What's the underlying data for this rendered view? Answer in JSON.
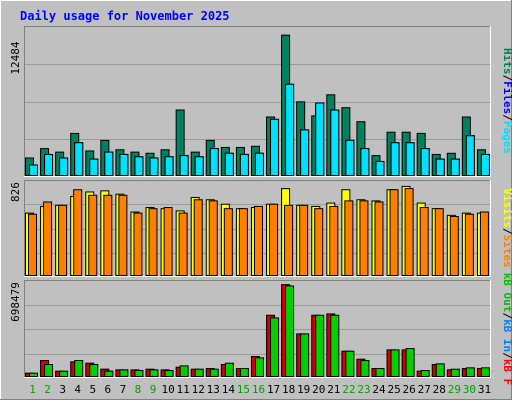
{
  "title": "Daily usage for November 2025",
  "colors": {
    "background": "#c0c0c0",
    "title": "#0000ff",
    "hits": "#00805c",
    "files": "#00c0ff",
    "pages": "#00e0ff",
    "sites": "#ff8000",
    "visits": "#ffff00",
    "kb_in": "#0080ff",
    "kb_out": "#00c000",
    "kb_f": "#ff0000",
    "kb_bar_red": "#d00000",
    "kb_bar_green": "#00d000",
    "weekend_day": "#00a000",
    "weekday_day": "#000000"
  },
  "chart_data": [
    {
      "type": "bar",
      "panel": "hits-files-pages",
      "ymax_label": "12484",
      "ylim": [
        0,
        12484
      ],
      "legend": [
        {
          "label": "Pages",
          "color": "#00e0ff"
        },
        {
          "label": "Files",
          "color": "#0000ff"
        },
        {
          "label": "Hits",
          "color": "#00805c"
        }
      ],
      "series": [
        {
          "name": "Hits",
          "values": [
            1500,
            2300,
            2000,
            3600,
            2100,
            3000,
            2200,
            2000,
            1900,
            2200,
            5600,
            2000,
            3000,
            2400,
            2400,
            2500,
            5000,
            12000,
            6300,
            5100,
            6900,
            5800,
            4600,
            1700,
            3700,
            3700,
            3600,
            1800,
            1900,
            5000,
            2200
          ]
        },
        {
          "name": "Files",
          "values": [
            900,
            1800,
            1500,
            2800,
            1400,
            2000,
            1800,
            1600,
            1500,
            1600,
            1700,
            1600,
            2300,
            1900,
            1800,
            1900,
            4800,
            7800,
            3900,
            6200,
            5600,
            3000,
            2300,
            1200,
            2800,
            2800,
            2300,
            1400,
            1400,
            3400,
            1800
          ]
        },
        {
          "name": "Pages",
          "values": [
            900,
            1800,
            1500,
            2800,
            1400,
            2000,
            1800,
            1600,
            1500,
            1600,
            1700,
            1600,
            2300,
            1900,
            1800,
            1900,
            4800,
            7800,
            3900,
            6200,
            5600,
            3000,
            2300,
            1200,
            2800,
            2800,
            2300,
            1400,
            1400,
            3400,
            1800
          ]
        }
      ]
    },
    {
      "type": "bar",
      "panel": "visits-sites",
      "ymax_label": "826",
      "ylim": [
        0,
        826
      ],
      "legend": [
        {
          "label": "Sites",
          "color": "#ff8000"
        },
        {
          "label": "Visits",
          "color": "#ffff00"
        }
      ],
      "series": [
        {
          "name": "Visits",
          "values": [
            560,
            620,
            630,
            710,
            750,
            760,
            730,
            570,
            610,
            600,
            580,
            700,
            680,
            640,
            600,
            610,
            640,
            780,
            630,
            620,
            650,
            770,
            680,
            670,
            770,
            800,
            650,
            600,
            540,
            560,
            560
          ]
        },
        {
          "name": "Sites",
          "values": [
            550,
            660,
            630,
            770,
            720,
            720,
            720,
            560,
            600,
            610,
            560,
            680,
            670,
            600,
            600,
            620,
            640,
            630,
            630,
            600,
            620,
            670,
            670,
            660,
            770,
            780,
            610,
            600,
            530,
            550,
            570
          ]
        }
      ]
    },
    {
      "type": "bar",
      "panel": "kbytes",
      "ymax_label": "698479",
      "ylim": [
        0,
        698479
      ],
      "legend": [
        {
          "label": "kB F",
          "color": "#ff0000"
        },
        {
          "label": "kB In",
          "color": "#0080ff"
        },
        {
          "label": "kB Out",
          "color": "#00c000"
        }
      ],
      "series": [
        {
          "name": "kB F",
          "values": [
            25000,
            120000,
            40000,
            110000,
            100000,
            55000,
            50000,
            50000,
            55000,
            50000,
            70000,
            55000,
            60000,
            90000,
            60000,
            150000,
            460000,
            690000,
            320000,
            460000,
            470000,
            190000,
            130000,
            60000,
            200000,
            200000,
            40000,
            90000,
            50000,
            60000,
            60000
          ]
        },
        {
          "name": "kB Out",
          "values": [
            25000,
            90000,
            40000,
            120000,
            90000,
            40000,
            50000,
            45000,
            50000,
            45000,
            80000,
            55000,
            55000,
            100000,
            60000,
            140000,
            440000,
            680000,
            320000,
            460000,
            460000,
            190000,
            120000,
            60000,
            200000,
            210000,
            45000,
            95000,
            55000,
            65000,
            65000
          ]
        }
      ]
    }
  ],
  "x_axis": {
    "days": [
      "1",
      "2",
      "3",
      "4",
      "5",
      "6",
      "7",
      "8",
      "9",
      "10",
      "11",
      "12",
      "13",
      "14",
      "15",
      "16",
      "17",
      "18",
      "19",
      "20",
      "21",
      "22",
      "23",
      "24",
      "25",
      "26",
      "27",
      "28",
      "29",
      "30",
      "31"
    ],
    "weekend_days": [
      "1",
      "2",
      "8",
      "9",
      "15",
      "16",
      "22",
      "23",
      "29",
      "30"
    ]
  }
}
